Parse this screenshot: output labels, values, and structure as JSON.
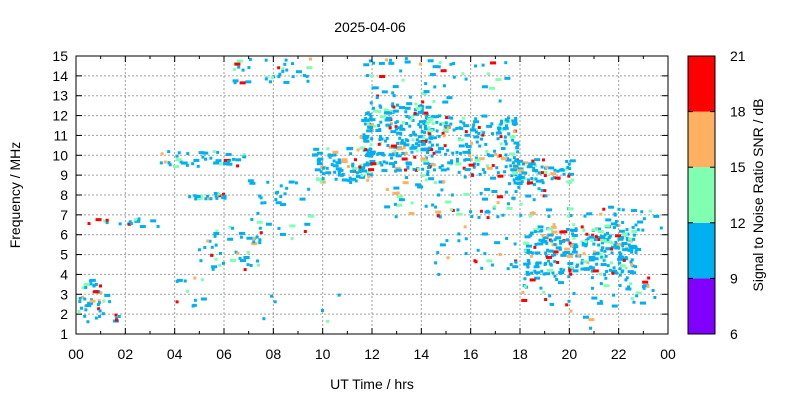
{
  "chart_data": {
    "type": "heatmap",
    "title": "2025-04-06",
    "xlabel": "UT Time / hrs",
    "ylabel": "Frequency / MHz",
    "colorbar_label": "Signal to Noise Ratio SNR / dB",
    "xlim": [
      0,
      24
    ],
    "ylim": [
      1,
      15
    ],
    "x_tick_labels": [
      "00",
      "02",
      "04",
      "06",
      "08",
      "10",
      "12",
      "14",
      "16",
      "18",
      "20",
      "22",
      "00"
    ],
    "y_tick_labels": [
      "1",
      "2",
      "3",
      "4",
      "5",
      "6",
      "7",
      "8",
      "9",
      "10",
      "11",
      "12",
      "13",
      "14",
      "15"
    ],
    "colorbar_ticks": [
      "6",
      "9",
      "12",
      "15",
      "18",
      "21"
    ],
    "colorbar_bands": [
      {
        "from": 6,
        "to": 9,
        "color": "#7f00ff"
      },
      {
        "from": 9,
        "to": 12,
        "color": "#00b0f0"
      },
      {
        "from": 12,
        "to": 15,
        "color": "#80ffb0"
      },
      {
        "from": 15,
        "to": 18,
        "color": "#ffb060"
      },
      {
        "from": 18,
        "to": 21,
        "color": "#ff0000"
      }
    ],
    "grid": true,
    "density_clusters": [
      {
        "t0": 0.0,
        "t1": 1.4,
        "f0": 1.6,
        "f1": 3.8,
        "n": 40
      },
      {
        "t0": 1.6,
        "t1": 1.8,
        "f0": 1.6,
        "f1": 2.0,
        "n": 5
      },
      {
        "t0": 0.4,
        "t1": 3.4,
        "f0": 6.4,
        "f1": 6.8,
        "n": 16
      },
      {
        "t0": 3.4,
        "t1": 6.9,
        "f0": 9.4,
        "f1": 10.2,
        "n": 40
      },
      {
        "t0": 4.6,
        "t1": 6.1,
        "f0": 7.8,
        "f1": 8.1,
        "n": 22
      },
      {
        "t0": 4.0,
        "t1": 5.4,
        "f0": 2.4,
        "f1": 4.0,
        "n": 12
      },
      {
        "t0": 5.0,
        "t1": 7.5,
        "f0": 4.2,
        "f1": 6.4,
        "n": 45
      },
      {
        "t0": 7.0,
        "t1": 9.6,
        "f0": 5.6,
        "f1": 9.0,
        "n": 35
      },
      {
        "t0": 6.4,
        "t1": 9.6,
        "f0": 13.6,
        "f1": 14.9,
        "n": 35
      },
      {
        "t0": 9.6,
        "t1": 12.0,
        "f0": 8.6,
        "f1": 10.4,
        "n": 90
      },
      {
        "t0": 11.5,
        "t1": 14.5,
        "f0": 9.2,
        "f1": 12.6,
        "n": 220
      },
      {
        "t0": 14.0,
        "t1": 18.0,
        "f0": 9.0,
        "f1": 12.0,
        "n": 200
      },
      {
        "t0": 11.6,
        "t1": 17.8,
        "f0": 12.6,
        "f1": 14.9,
        "n": 55
      },
      {
        "t0": 12.6,
        "t1": 19.2,
        "f0": 6.8,
        "f1": 9.0,
        "n": 90
      },
      {
        "t0": 17.6,
        "t1": 20.2,
        "f0": 8.6,
        "f1": 9.8,
        "n": 70
      },
      {
        "t0": 18.2,
        "t1": 22.8,
        "f0": 4.0,
        "f1": 6.4,
        "n": 260
      },
      {
        "t0": 18.0,
        "t1": 23.8,
        "f0": 2.4,
        "f1": 4.4,
        "n": 60
      },
      {
        "t0": 19.2,
        "t1": 23.8,
        "f0": 6.2,
        "f1": 7.4,
        "n": 35
      },
      {
        "t0": 14.4,
        "t1": 18.4,
        "f0": 4.0,
        "f1": 6.4,
        "n": 30
      },
      {
        "t0": 7.6,
        "t1": 11.4,
        "f0": 1.4,
        "f1": 3.0,
        "n": 6
      },
      {
        "t0": 19.8,
        "t1": 21.8,
        "f0": 1.2,
        "f1": 2.2,
        "n": 4
      }
    ]
  }
}
